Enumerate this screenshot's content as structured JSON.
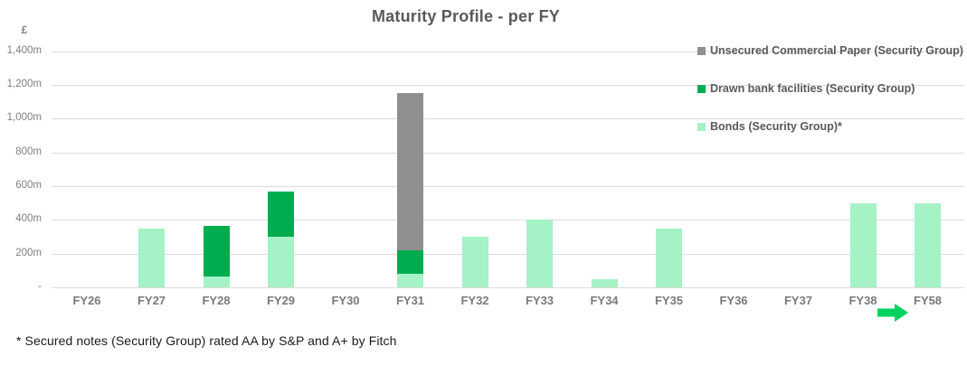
{
  "title": "Maturity Profile - per FY",
  "currency_label": "£",
  "footnote": "* Secured notes (Security Group) rated AA by S&P and A+ by Fitch",
  "colors": {
    "bonds": "#A4F2C6",
    "drawn_bank_facilities": "#00AC4F",
    "unsecured_commercial_paper": "#8F8F8F",
    "gridline": "#DCDCDC",
    "title_text": "#595959",
    "axis_text": "#7F7F7F",
    "arrow": "#00D25C"
  },
  "chart_data": {
    "type": "bar",
    "stacked": true,
    "title": "Maturity Profile - per FY",
    "ylabel": "£",
    "xlabel": "",
    "unit": "£m",
    "categories": [
      "FY26",
      "FY27",
      "FY28",
      "FY29",
      "FY30",
      "FY31",
      "FY32",
      "FY33",
      "FY34",
      "FY35",
      "FY36",
      "FY37",
      "FY38",
      "FY58"
    ],
    "series": [
      {
        "name": "Bonds (Security Group)*",
        "color": "#A4F2C6",
        "values": [
          0,
          350,
          65,
          300,
          0,
          80,
          300,
          400,
          50,
          350,
          0,
          0,
          500,
          500
        ]
      },
      {
        "name": "Drawn bank facilities (Security Group)",
        "color": "#00AC4F",
        "values": [
          0,
          0,
          300,
          270,
          0,
          140,
          0,
          0,
          0,
          0,
          0,
          0,
          0,
          0
        ]
      },
      {
        "name": "Unsecured Commercial Paper (Security Group)",
        "color": "#8F8F8F",
        "values": [
          0,
          0,
          0,
          0,
          0,
          930,
          0,
          0,
          0,
          0,
          0,
          0,
          0,
          0
        ]
      }
    ],
    "totals": [
      0,
      350,
      365,
      570,
      0,
      1150,
      300,
      400,
      50,
      350,
      0,
      0,
      500,
      500
    ],
    "ylim": [
      0,
      1400
    ],
    "y_ticks": [
      {
        "value": 1400,
        "label": "1,400m"
      },
      {
        "value": 1200,
        "label": "1,200m"
      },
      {
        "value": 1000,
        "label": "1,000m"
      },
      {
        "value": 800,
        "label": "800m"
      },
      {
        "value": 600,
        "label": "600m"
      },
      {
        "value": 400,
        "label": "400m"
      },
      {
        "value": 200,
        "label": "200m"
      },
      {
        "value": 0,
        "label": "-"
      }
    ],
    "grid": true,
    "legend_position": "top-right-inside",
    "legend": [
      {
        "label": "Unsecured Commercial Paper (Security Group)",
        "color": "#8F8F8F"
      },
      {
        "label": "Drawn bank facilities (Security Group)",
        "color": "#00AC4F"
      },
      {
        "label": "Bonds (Security Group)*",
        "color": "#A4F2C6"
      }
    ],
    "annotations": [
      {
        "name": "time-gap-arrow",
        "shape": "right-block-arrow",
        "color": "#00D25C",
        "between": [
          "FY38",
          "FY58"
        ]
      }
    ]
  }
}
